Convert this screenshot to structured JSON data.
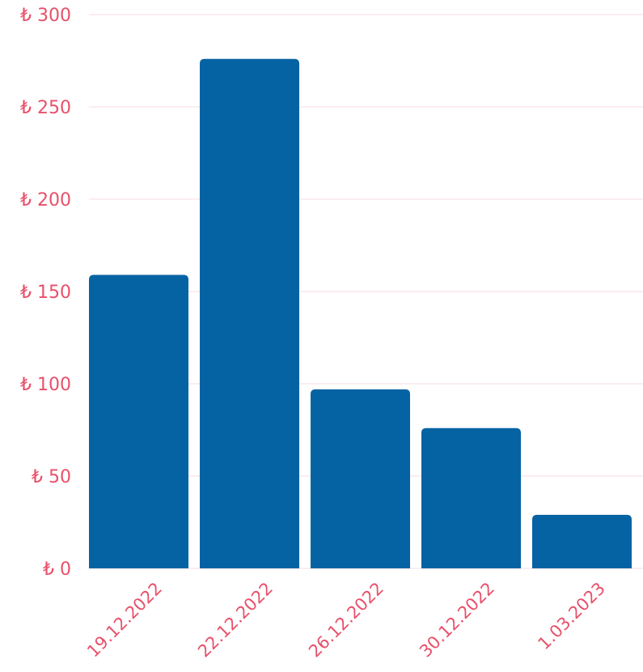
{
  "chart_data": {
    "type": "bar",
    "categories": [
      "19.12.2022",
      "22.12.2022",
      "26.12.2022",
      "30.12.2022",
      "1.03.2023"
    ],
    "values": [
      159,
      276,
      97,
      76,
      29
    ],
    "y_ticks": [
      {
        "value": 0,
        "label": "₺ 0"
      },
      {
        "value": 50,
        "label": "₺ 50"
      },
      {
        "value": 100,
        "label": "₺ 100"
      },
      {
        "value": 150,
        "label": "₺ 150"
      },
      {
        "value": 200,
        "label": "₺ 200"
      },
      {
        "value": 250,
        "label": "₺ 250"
      },
      {
        "value": 300,
        "label": "₺ 300"
      }
    ],
    "ylim": [
      0,
      300
    ],
    "grid": true,
    "legend": "none",
    "colors": {
      "bar": "#0563a3",
      "tick_label": "#e8506a",
      "grid": "#f7dbe2"
    }
  }
}
